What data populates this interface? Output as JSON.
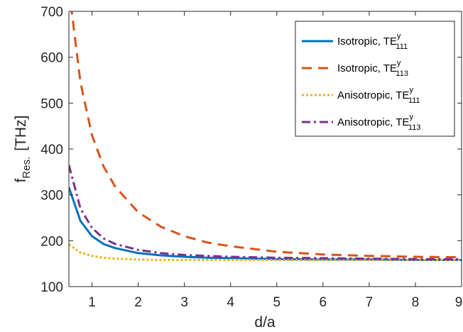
{
  "chart_data": {
    "type": "line",
    "xlabel": "d/a",
    "ylabel": {
      "main": "f",
      "sub": "Res.",
      "unit": "[THz]"
    },
    "xlim": [
      0.5,
      9
    ],
    "ylim": [
      100,
      700
    ],
    "xticks": [
      "1",
      "2",
      "3",
      "4",
      "5",
      "6",
      "7",
      "8",
      "9"
    ],
    "yticks": [
      "100",
      "200",
      "300",
      "400",
      "500",
      "600",
      "700"
    ],
    "grid": false,
    "legend_position": "top-right",
    "x": [
      0.5,
      0.75,
      1,
      1.25,
      1.5,
      2,
      2.5,
      3,
      3.5,
      4,
      5,
      6,
      7,
      8,
      9
    ],
    "series": [
      {
        "name": "Isotropic, TE",
        "name_sup": "y",
        "name_sub": "111",
        "color": "#0072BD",
        "dash": "solid",
        "values": [
          316,
          243,
          210,
          193,
          184,
          173,
          168,
          165,
          163,
          162,
          160,
          159,
          159,
          158,
          158
        ]
      },
      {
        "name": "Isotropic, TE",
        "name_sup": "y",
        "name_sub": "113",
        "color": "#D95319",
        "dash": "dashed",
        "values": [
          750,
          545,
          430,
          362,
          318,
          262,
          230,
          210,
          196,
          188,
          176,
          170,
          167,
          165,
          164
        ]
      },
      {
        "name": "Anisotropic, TE",
        "name_sup": "y",
        "name_sub": "111",
        "color": "#EDB120",
        "dash": "dotted",
        "values": [
          192,
          174,
          167,
          163,
          161,
          159,
          158,
          158,
          158,
          158,
          158,
          158,
          158,
          158,
          158
        ]
      },
      {
        "name": "Anisotropic, TE",
        "name_sup": "y",
        "name_sub": "113",
        "color": "#7E2F8E",
        "dash": "dashdot",
        "values": [
          365,
          270,
          228,
          205,
          193,
          180,
          173,
          169,
          167,
          165,
          163,
          162,
          161,
          160,
          160
        ]
      }
    ]
  }
}
